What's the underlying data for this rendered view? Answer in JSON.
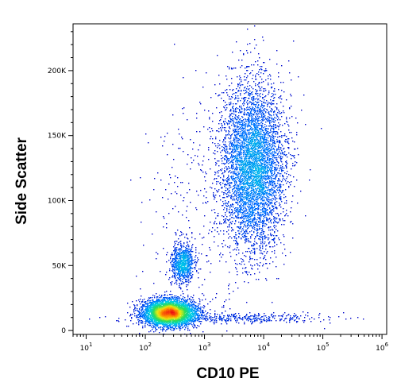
{
  "chart_data": {
    "type": "scatter",
    "title": "",
    "xlabel": "CD10 PE",
    "ylabel": "Side Scatter",
    "x_scale": "log",
    "y_scale": "linear",
    "xlim": [
      6,
      1200000
    ],
    "ylim": [
      -3000,
      236000
    ],
    "grid": false,
    "color_scale": "density (blue → cyan → green → yellow → orange → red)",
    "x_ticks": [
      {
        "value": 10,
        "base": "10",
        "exp": "1"
      },
      {
        "value": 100,
        "base": "10",
        "exp": "2"
      },
      {
        "value": 1000,
        "base": "10",
        "exp": "3"
      },
      {
        "value": 10000,
        "base": "10",
        "exp": "4"
      },
      {
        "value": 100000,
        "base": "10",
        "exp": "5"
      },
      {
        "value": 1000000,
        "base": "10",
        "exp": "6"
      }
    ],
    "y_ticks": [
      {
        "value": 0,
        "label": "0"
      },
      {
        "value": 50000,
        "label": "50K"
      },
      {
        "value": 100000,
        "label": "100K"
      },
      {
        "value": 150000,
        "label": "150K"
      },
      {
        "value": 200000,
        "label": "200K"
      }
    ],
    "populations": [
      {
        "center_x": 250,
        "center_y": 14000,
        "points": 5500
      },
      {
        "center_x": 420,
        "center_y": 52000,
        "points": 900
      },
      {
        "center_x": 6500,
        "center_y": 127000,
        "points": 8000
      },
      {
        "center_x": 3000,
        "center_y": 10000,
        "points": 400
      },
      {
        "center_x": 700,
        "center_y": 80000,
        "points": 300
      }
    ]
  }
}
